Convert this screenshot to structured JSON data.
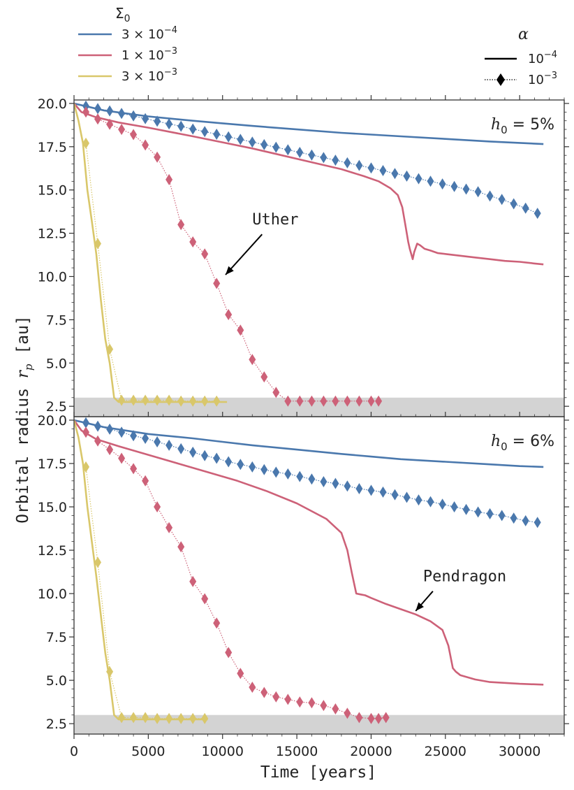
{
  "chart_data": {
    "type": "line",
    "xlabel": "Time [years]",
    "ylabel": "Orbital radius r_p [au]",
    "ylabel_text": "Orbital radius ",
    "ylabel_symbol": "r",
    "ylabel_sub": "p",
    "ylabel_unit": " [au]",
    "xlim": [
      0,
      33000
    ],
    "x_ticks": [
      0,
      5000,
      10000,
      15000,
      20000,
      25000,
      30000
    ],
    "x_tick_labels": [
      "0",
      "5000",
      "10000",
      "15000",
      "20000",
      "25000",
      "30000"
    ],
    "colors": {
      "blue": "#4a78ad",
      "red": "#cd6178",
      "yellow": "#d9c76a",
      "shade": "#d3d3d3"
    },
    "legend_sigma": {
      "title": "Σ0",
      "title_main": "Σ",
      "title_sub": "0",
      "entries": [
        {
          "label": "3 × 10⁻⁴",
          "mantissa": "3 × 10",
          "exp": "−4",
          "color": "#4a78ad"
        },
        {
          "label": "1 × 10⁻³",
          "mantissa": "1 × 10",
          "exp": "−3",
          "color": "#cd6178"
        },
        {
          "label": "3 × 10⁻³",
          "mantissa": "3 × 10",
          "exp": "−3",
          "color": "#d9c76a"
        }
      ]
    },
    "legend_alpha": {
      "title": "α",
      "entries": [
        {
          "label": "10⁻⁴",
          "mantissa": "10",
          "exp": "−4",
          "style": "solid"
        },
        {
          "label": "10⁻³",
          "mantissa": "10",
          "exp": "−3",
          "style": "dotted-diamond"
        }
      ]
    },
    "panels": [
      {
        "label": "h0 = 5%",
        "label_main": "h",
        "label_sub": "0",
        "label_rest": " = 5%",
        "ylim": [
          1.9,
          20.2
        ],
        "y_ticks": [
          2.5,
          5.0,
          7.5,
          10.0,
          12.5,
          15.0,
          17.5,
          20.0
        ],
        "y_tick_labels": [
          "2.5",
          "5.0",
          "7.5",
          "10.0",
          "12.5",
          "15.0",
          "17.5",
          "20.0"
        ],
        "shaded_band": [
          1.9,
          3.0
        ],
        "annotation": {
          "text": "Uther",
          "text_xy": [
            12000,
            13.0
          ],
          "arrow_to": [
            10200,
            10.1
          ]
        },
        "series": [
          {
            "sigma": "3 × 10⁻⁴",
            "alpha": "10⁻⁴",
            "color": "#4a78ad",
            "style": "solid",
            "x": [
              0,
              2000,
              5000,
              8000,
              10000,
              12000,
              15000,
              18000,
              20000,
              22000,
              25000,
              28000,
              30000,
              31600
            ],
            "y": [
              20.0,
              19.6,
              19.25,
              19.0,
              18.85,
              18.7,
              18.5,
              18.3,
              18.2,
              18.1,
              17.95,
              17.8,
              17.72,
              17.65
            ]
          },
          {
            "sigma": "3 × 10⁻⁴",
            "alpha": "10⁻³",
            "color": "#4a78ad",
            "style": "dotted-diamond",
            "x": [
              800,
              1600,
              2400,
              3200,
              4000,
              4800,
              5600,
              6400,
              7200,
              8000,
              8800,
              9600,
              10400,
              11200,
              12000,
              12800,
              13600,
              14400,
              15200,
              16000,
              16800,
              17600,
              18400,
              19200,
              20000,
              20800,
              21600,
              22400,
              23200,
              24000,
              24800,
              25600,
              26400,
              27200,
              28000,
              28800,
              29600,
              30400,
              31200
            ],
            "y": [
              19.85,
              19.7,
              19.57,
              19.42,
              19.28,
              19.12,
              18.97,
              18.82,
              18.68,
              18.52,
              18.37,
              18.22,
              18.07,
              17.92,
              17.77,
              17.62,
              17.47,
              17.32,
              17.17,
              17.02,
              16.87,
              16.72,
              16.57,
              16.42,
              16.27,
              16.12,
              15.95,
              15.8,
              15.65,
              15.5,
              15.35,
              15.2,
              15.05,
              14.9,
              14.65,
              14.45,
              14.2,
              13.95,
              13.65
            ]
          },
          {
            "sigma": "1 × 10⁻³",
            "alpha": "10⁻⁴",
            "color": "#cd6178",
            "style": "solid",
            "x": [
              0,
              500,
              1500,
              3000,
              5000,
              8000,
              10000,
              12000,
              14000,
              16000,
              18000,
              19500,
              20500,
              21300,
              21800,
              22100,
              22300,
              22500,
              22600,
              22800,
              22900,
              23100,
              23300,
              23600,
              24000,
              24500,
              25000,
              26000,
              27000,
              28000,
              29000,
              30000,
              31000,
              31600
            ],
            "y": [
              20.0,
              19.5,
              19.2,
              18.9,
              18.6,
              18.1,
              17.75,
              17.4,
              17.0,
              16.6,
              16.2,
              15.8,
              15.5,
              15.1,
              14.7,
              14.0,
              13.0,
              12.0,
              11.6,
              11.0,
              11.4,
              11.9,
              11.8,
              11.6,
              11.5,
              11.35,
              11.3,
              11.2,
              11.1,
              11.0,
              10.9,
              10.85,
              10.75,
              10.7
            ]
          },
          {
            "sigma": "1 × 10⁻³",
            "alpha": "10⁻³",
            "color": "#cd6178",
            "style": "dotted-diamond",
            "x": [
              800,
              1600,
              2400,
              3200,
              4000,
              4800,
              5600,
              6400,
              7200,
              8000,
              8800,
              9600,
              10400,
              11200,
              12000,
              12800,
              13600,
              14400,
              15200,
              16000,
              16800,
              17600,
              18400,
              19200,
              20000,
              20500
            ],
            "y": [
              19.5,
              19.1,
              18.8,
              18.5,
              18.2,
              17.6,
              16.9,
              15.6,
              13.0,
              12.0,
              11.3,
              9.6,
              7.8,
              6.9,
              5.2,
              4.2,
              3.3,
              2.8,
              2.8,
              2.8,
              2.8,
              2.8,
              2.8,
              2.8,
              2.8,
              2.8
            ]
          },
          {
            "sigma": "3 × 10⁻³",
            "alpha": "10⁻⁴",
            "color": "#d9c76a",
            "style": "solid",
            "x": [
              0,
              300,
              600,
              900,
              1200,
              1500,
              1800,
              2100,
              2400,
              2700,
              3000,
              5000,
              7000,
              9000,
              10300
            ],
            "y": [
              20.0,
              19.0,
              17.7,
              15.0,
              13.2,
              11.3,
              8.7,
              6.4,
              5.0,
              3.0,
              2.75,
              2.75,
              2.75,
              2.75,
              2.75
            ]
          },
          {
            "sigma": "3 × 10⁻³",
            "alpha": "10⁻³",
            "color": "#d9c76a",
            "style": "dotted-diamond",
            "x": [
              800,
              1600,
              2400,
              3200,
              4000,
              4800,
              5600,
              6400,
              7200,
              8000,
              8800,
              9600
            ],
            "y": [
              17.7,
              11.9,
              5.8,
              2.85,
              2.85,
              2.85,
              2.85,
              2.85,
              2.8,
              2.8,
              2.8,
              2.8
            ]
          }
        ]
      },
      {
        "label": "h0 = 6%",
        "label_main": "h",
        "label_sub": "0",
        "label_rest": " = 6%",
        "ylim": [
          1.9,
          20.2
        ],
        "y_ticks": [
          2.5,
          5.0,
          7.5,
          10.0,
          12.5,
          15.0,
          17.5,
          20.0
        ],
        "y_tick_labels": [
          "2.5",
          "5.0",
          "7.5",
          "10.0",
          "12.5",
          "15.0",
          "17.5",
          "20.0"
        ],
        "shaded_band": [
          1.9,
          3.0
        ],
        "annotation": {
          "text": "Pendragon",
          "text_xy": [
            23500,
            10.7
          ],
          "arrow_to": [
            23000,
            9.0
          ]
        },
        "series": [
          {
            "sigma": "3 × 10⁻⁴",
            "alpha": "10⁻⁴",
            "color": "#4a78ad",
            "style": "solid",
            "x": [
              0,
              2000,
              5000,
              8000,
              10000,
              12000,
              15000,
              18000,
              20000,
              22000,
              25000,
              28000,
              30000,
              31600
            ],
            "y": [
              20.0,
              19.6,
              19.2,
              18.95,
              18.75,
              18.55,
              18.3,
              18.05,
              17.9,
              17.75,
              17.6,
              17.45,
              17.35,
              17.3
            ]
          },
          {
            "sigma": "3 × 10⁻⁴",
            "alpha": "10⁻³",
            "color": "#4a78ad",
            "style": "dotted-diamond",
            "x": [
              800,
              1600,
              2400,
              3200,
              4000,
              4800,
              5600,
              6400,
              7200,
              8000,
              8800,
              9600,
              10400,
              11200,
              12000,
              12800,
              13600,
              14400,
              15200,
              16000,
              16800,
              17600,
              18400,
              19200,
              20000,
              20800,
              21600,
              22400,
              23200,
              24000,
              24800,
              25600,
              26400,
              27200,
              28000,
              28800,
              29600,
              30400,
              31200
            ],
            "y": [
              19.85,
              19.65,
              19.48,
              19.3,
              19.1,
              18.95,
              18.75,
              18.55,
              18.35,
              18.15,
              17.95,
              17.8,
              17.6,
              17.45,
              17.3,
              17.15,
              17.0,
              16.9,
              16.75,
              16.6,
              16.45,
              16.35,
              16.2,
              16.05,
              15.95,
              15.85,
              15.7,
              15.55,
              15.4,
              15.3,
              15.15,
              15.0,
              14.85,
              14.7,
              14.6,
              14.5,
              14.35,
              14.2,
              14.1
            ]
          },
          {
            "sigma": "1 × 10⁻³",
            "alpha": "10⁻⁴",
            "color": "#cd6178",
            "style": "solid",
            "x": [
              0,
              500,
              1500,
              3000,
              5000,
              7000,
              9000,
              11000,
              13000,
              15000,
              17000,
              18000,
              18400,
              18700,
              19000,
              19300,
              19600,
              20000,
              21000,
              22000,
              23000,
              24000,
              24800,
              25200,
              25500,
              25700,
              26000,
              27000,
              28000,
              29000,
              30000,
              31600
            ],
            "y": [
              20.0,
              19.4,
              18.9,
              18.5,
              18.0,
              17.5,
              17.0,
              16.5,
              15.9,
              15.2,
              14.3,
              13.5,
              12.5,
              11.2,
              10.0,
              9.95,
              9.9,
              9.75,
              9.4,
              9.1,
              8.8,
              8.4,
              7.9,
              7.0,
              5.7,
              5.5,
              5.3,
              5.05,
              4.9,
              4.85,
              4.8,
              4.75
            ]
          },
          {
            "sigma": "1 × 10⁻³",
            "alpha": "10⁻³",
            "color": "#cd6178",
            "style": "dotted-diamond",
            "x": [
              800,
              1600,
              2400,
              3200,
              4000,
              4800,
              5600,
              6400,
              7200,
              8000,
              8800,
              9600,
              10400,
              11200,
              12000,
              12800,
              13600,
              14400,
              15200,
              16000,
              16800,
              17600,
              18400,
              19200,
              20000,
              20500,
              21000
            ],
            "y": [
              19.3,
              18.8,
              18.3,
              17.8,
              17.2,
              16.5,
              15.0,
              13.8,
              12.7,
              10.7,
              9.7,
              8.3,
              6.6,
              5.4,
              4.6,
              4.3,
              4.05,
              3.9,
              3.75,
              3.7,
              3.55,
              3.35,
              3.1,
              2.85,
              2.8,
              2.8,
              2.85
            ]
          },
          {
            "sigma": "3 × 10⁻³",
            "alpha": "10⁻⁴",
            "color": "#d9c76a",
            "style": "solid",
            "x": [
              0,
              300,
              600,
              900,
              1200,
              1500,
              1800,
              2100,
              2400,
              2700,
              3000,
              5000,
              7000,
              9000
            ],
            "y": [
              20.0,
              19.0,
              17.5,
              15.0,
              13.0,
              11.0,
              8.8,
              6.6,
              5.0,
              3.0,
              2.75,
              2.75,
              2.75,
              2.75
            ]
          },
          {
            "sigma": "3 × 10⁻³",
            "alpha": "10⁻³",
            "color": "#d9c76a",
            "style": "dotted-diamond",
            "x": [
              800,
              1600,
              2400,
              3200,
              4000,
              4800,
              5600,
              6400,
              7200,
              8000,
              8800
            ],
            "y": [
              17.3,
              11.8,
              5.5,
              2.85,
              2.85,
              2.85,
              2.8,
              2.8,
              2.8,
              2.8,
              2.8
            ]
          }
        ]
      }
    ]
  }
}
